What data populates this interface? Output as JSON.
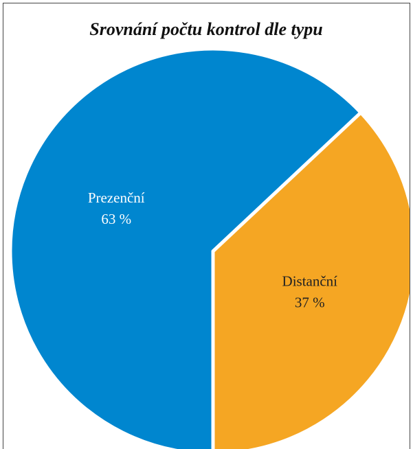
{
  "chart_data": {
    "type": "pie",
    "title": "Srovnání počtu kontrol dle typu",
    "categories": [
      "Prezenční",
      "Distanční"
    ],
    "values": [
      63,
      37
    ],
    "value_labels": [
      "63 %",
      "37 %"
    ],
    "colors": [
      "#0086cf",
      "#f5a623"
    ]
  }
}
